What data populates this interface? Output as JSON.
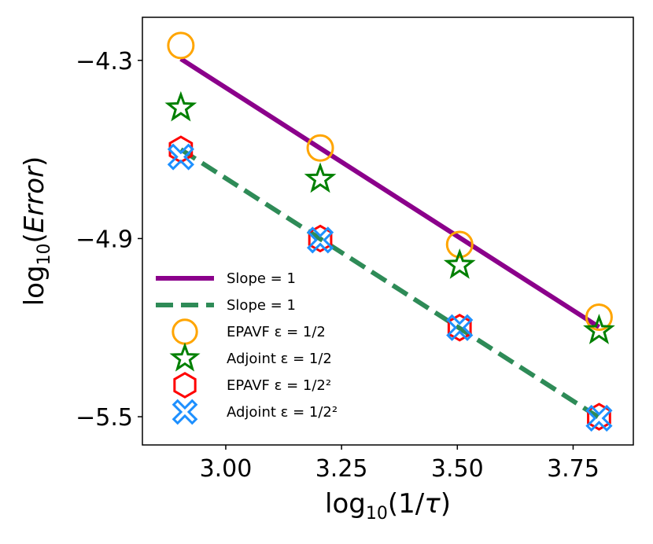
{
  "chart_data": {
    "type": "line",
    "xlabel": "log10(1/τ)",
    "ylabel": "log10(Error)",
    "xlim": [
      2.82,
      3.88
    ],
    "ylim": [
      -5.595,
      -4.155
    ],
    "xticks": [
      3.0,
      3.25,
      3.5,
      3.75
    ],
    "xtick_labels": [
      "3.00",
      "3.25",
      "3.50",
      "3.75"
    ],
    "yticks": [
      -4.3,
      -4.9,
      -5.5
    ],
    "ytick_labels": [
      "−4.3",
      "−4.9",
      "−5.5"
    ],
    "legend_position": "lower-left",
    "series": [
      {
        "name": "Slope = 1",
        "kind": "line",
        "style": "solid",
        "color": "#8b008b",
        "x": [
          2.903,
          3.806
        ],
        "y": [
          -4.295,
          -5.198
        ]
      },
      {
        "name": "Slope = 1",
        "kind": "line",
        "style": "dashed",
        "color": "#2e8b57",
        "x": [
          2.903,
          3.806
        ],
        "y": [
          -4.6,
          -5.503
        ]
      },
      {
        "name": "EPAVF ε = 1/2",
        "kind": "marker",
        "marker": "circle",
        "color": "#ffa500",
        "x": [
          2.903,
          3.204,
          3.505,
          3.806
        ],
        "y": [
          -4.25,
          -4.595,
          -4.92,
          -5.165
        ]
      },
      {
        "name": "Adjoint ε = 1/2",
        "kind": "marker",
        "marker": "star",
        "color": "#008000",
        "x": [
          2.903,
          3.204,
          3.505,
          3.806
        ],
        "y": [
          -4.46,
          -4.7,
          -4.99,
          -5.21
        ]
      },
      {
        "name": "EPAVF ε = 1/2²",
        "kind": "marker",
        "marker": "hexagon",
        "color": "#ff0000",
        "x": [
          2.903,
          3.204,
          3.505,
          3.806
        ],
        "y": [
          -4.6,
          -4.9,
          -5.2,
          -5.5
        ]
      },
      {
        "name": "Adjoint ε = 1/2²",
        "kind": "marker",
        "marker": "X",
        "color": "#1e90ff",
        "x": [
          2.903,
          3.204,
          3.505,
          3.806
        ],
        "y": [
          -4.625,
          -4.905,
          -5.2,
          -5.505
        ]
      }
    ]
  }
}
